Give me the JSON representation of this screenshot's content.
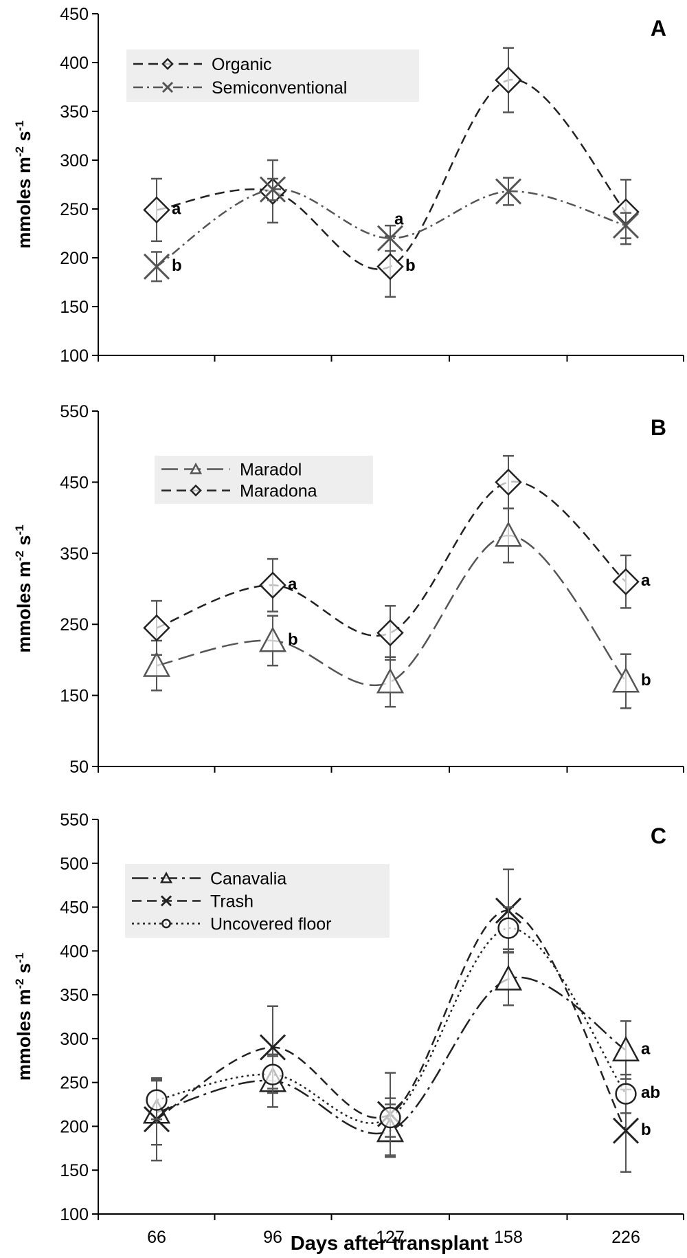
{
  "colors": {
    "axis": "#000000",
    "error": "#555555",
    "legend_bg": "#eeeeee",
    "line": "#222222"
  },
  "x_axis_title": "Days after transplant",
  "chart_data": [
    {
      "type": "line",
      "panel": "A",
      "categories": [
        "66",
        "96",
        "127",
        "158",
        "226"
      ],
      "ylabel_main": "mmoles  m",
      "ylabel_sup1": "-2",
      "ylabel_mid": " s",
      "ylabel_sup2": "-1",
      "ylim": [
        100,
        450
      ],
      "yticks": [
        100,
        150,
        200,
        250,
        300,
        350,
        400,
        450
      ],
      "yticklabels": [
        "100",
        "150",
        "200",
        "250",
        "300",
        "350",
        "400",
        "450"
      ],
      "legend_position": "top-left",
      "series": [
        {
          "name": "Organic",
          "marker": "diamond",
          "dash": "dash",
          "color": "#222222",
          "values": [
            249,
            268,
            191,
            382,
            247
          ],
          "errors": [
            32,
            32,
            31,
            33,
            33
          ]
        },
        {
          "name": "Semiconventional",
          "marker": "x",
          "dash": "dashdot",
          "color": "#555555",
          "values": [
            191,
            270,
            220,
            268,
            233
          ],
          "errors": [
            15,
            11,
            13,
            14,
            13
          ]
        }
      ],
      "annotations": [
        {
          "text": "a",
          "series": 0,
          "index": 0,
          "pos": "right"
        },
        {
          "text": "b",
          "series": 1,
          "index": 0,
          "pos": "right"
        },
        {
          "text": "a",
          "series": 1,
          "index": 2,
          "pos": "above"
        },
        {
          "text": "b",
          "series": 0,
          "index": 2,
          "pos": "right"
        }
      ]
    },
    {
      "type": "line",
      "panel": "B",
      "categories": [
        "66",
        "96",
        "127",
        "158",
        "226"
      ],
      "ylabel_main": "mmoles  m",
      "ylabel_sup1": "-2",
      "ylabel_mid": " s",
      "ylabel_sup2": "-1",
      "ylim": [
        50,
        550
      ],
      "yticks": [
        50,
        150,
        250,
        350,
        450,
        550
      ],
      "yticklabels": [
        "50",
        "150",
        "250",
        "350",
        "450",
        "550"
      ],
      "legend_position": "top-left",
      "series": [
        {
          "name": "Maradol",
          "marker": "triangle",
          "dash": "longdash",
          "color": "#555555",
          "values": [
            192,
            227,
            169,
            375,
            170
          ],
          "errors": [
            35,
            35,
            35,
            38,
            38
          ]
        },
        {
          "name": "Maradona",
          "marker": "diamond",
          "dash": "dash",
          "color": "#222222",
          "values": [
            245,
            305,
            238,
            450,
            310
          ],
          "errors": [
            38,
            37,
            38,
            37,
            37
          ]
        }
      ],
      "annotations": [
        {
          "text": "a",
          "series": 1,
          "index": 1,
          "pos": "right"
        },
        {
          "text": "b",
          "series": 0,
          "index": 1,
          "pos": "right"
        },
        {
          "text": "a",
          "series": 1,
          "index": 4,
          "pos": "right"
        },
        {
          "text": "b",
          "series": 0,
          "index": 4,
          "pos": "right"
        }
      ]
    },
    {
      "type": "line",
      "panel": "C",
      "categories": [
        "66",
        "96",
        "127",
        "158",
        "226"
      ],
      "ylabel_main": "mmoles  m",
      "ylabel_sup1": "-2",
      "ylabel_mid": " s",
      "ylabel_sup2": "-1",
      "ylim": [
        100,
        550
      ],
      "yticks": [
        100,
        150,
        200,
        250,
        300,
        350,
        400,
        450,
        500,
        550
      ],
      "yticklabels": [
        "100",
        "150",
        "200",
        "250",
        "300",
        "350",
        "400",
        "450",
        "500",
        "550"
      ],
      "legend_position": "top-left",
      "series": [
        {
          "name": "Canavalia",
          "marker": "triangle",
          "dash": "longdashdot",
          "color": "#222222",
          "values": [
            216,
            252,
            195,
            368,
            287
          ],
          "errors": [
            37,
            30,
            30,
            30,
            33
          ]
        },
        {
          "name": "Trash",
          "marker": "x",
          "dash": "dash",
          "color": "#222222",
          "values": [
            208,
            290,
            214,
            446,
            195
          ],
          "errors": [
            47,
            47,
            47,
            47,
            47
          ]
        },
        {
          "name": "Uncovered floor",
          "marker": "circle",
          "dash": "dot",
          "color": "#222222",
          "values": [
            230,
            259,
            210,
            426,
            237
          ],
          "errors": [
            22,
            21,
            22,
            24,
            22
          ]
        }
      ],
      "annotations": [
        {
          "text": "a",
          "series": 0,
          "index": 4,
          "pos": "right"
        },
        {
          "text": "ab",
          "series": 2,
          "index": 4,
          "pos": "right"
        },
        {
          "text": "b",
          "series": 1,
          "index": 4,
          "pos": "right"
        }
      ]
    }
  ]
}
